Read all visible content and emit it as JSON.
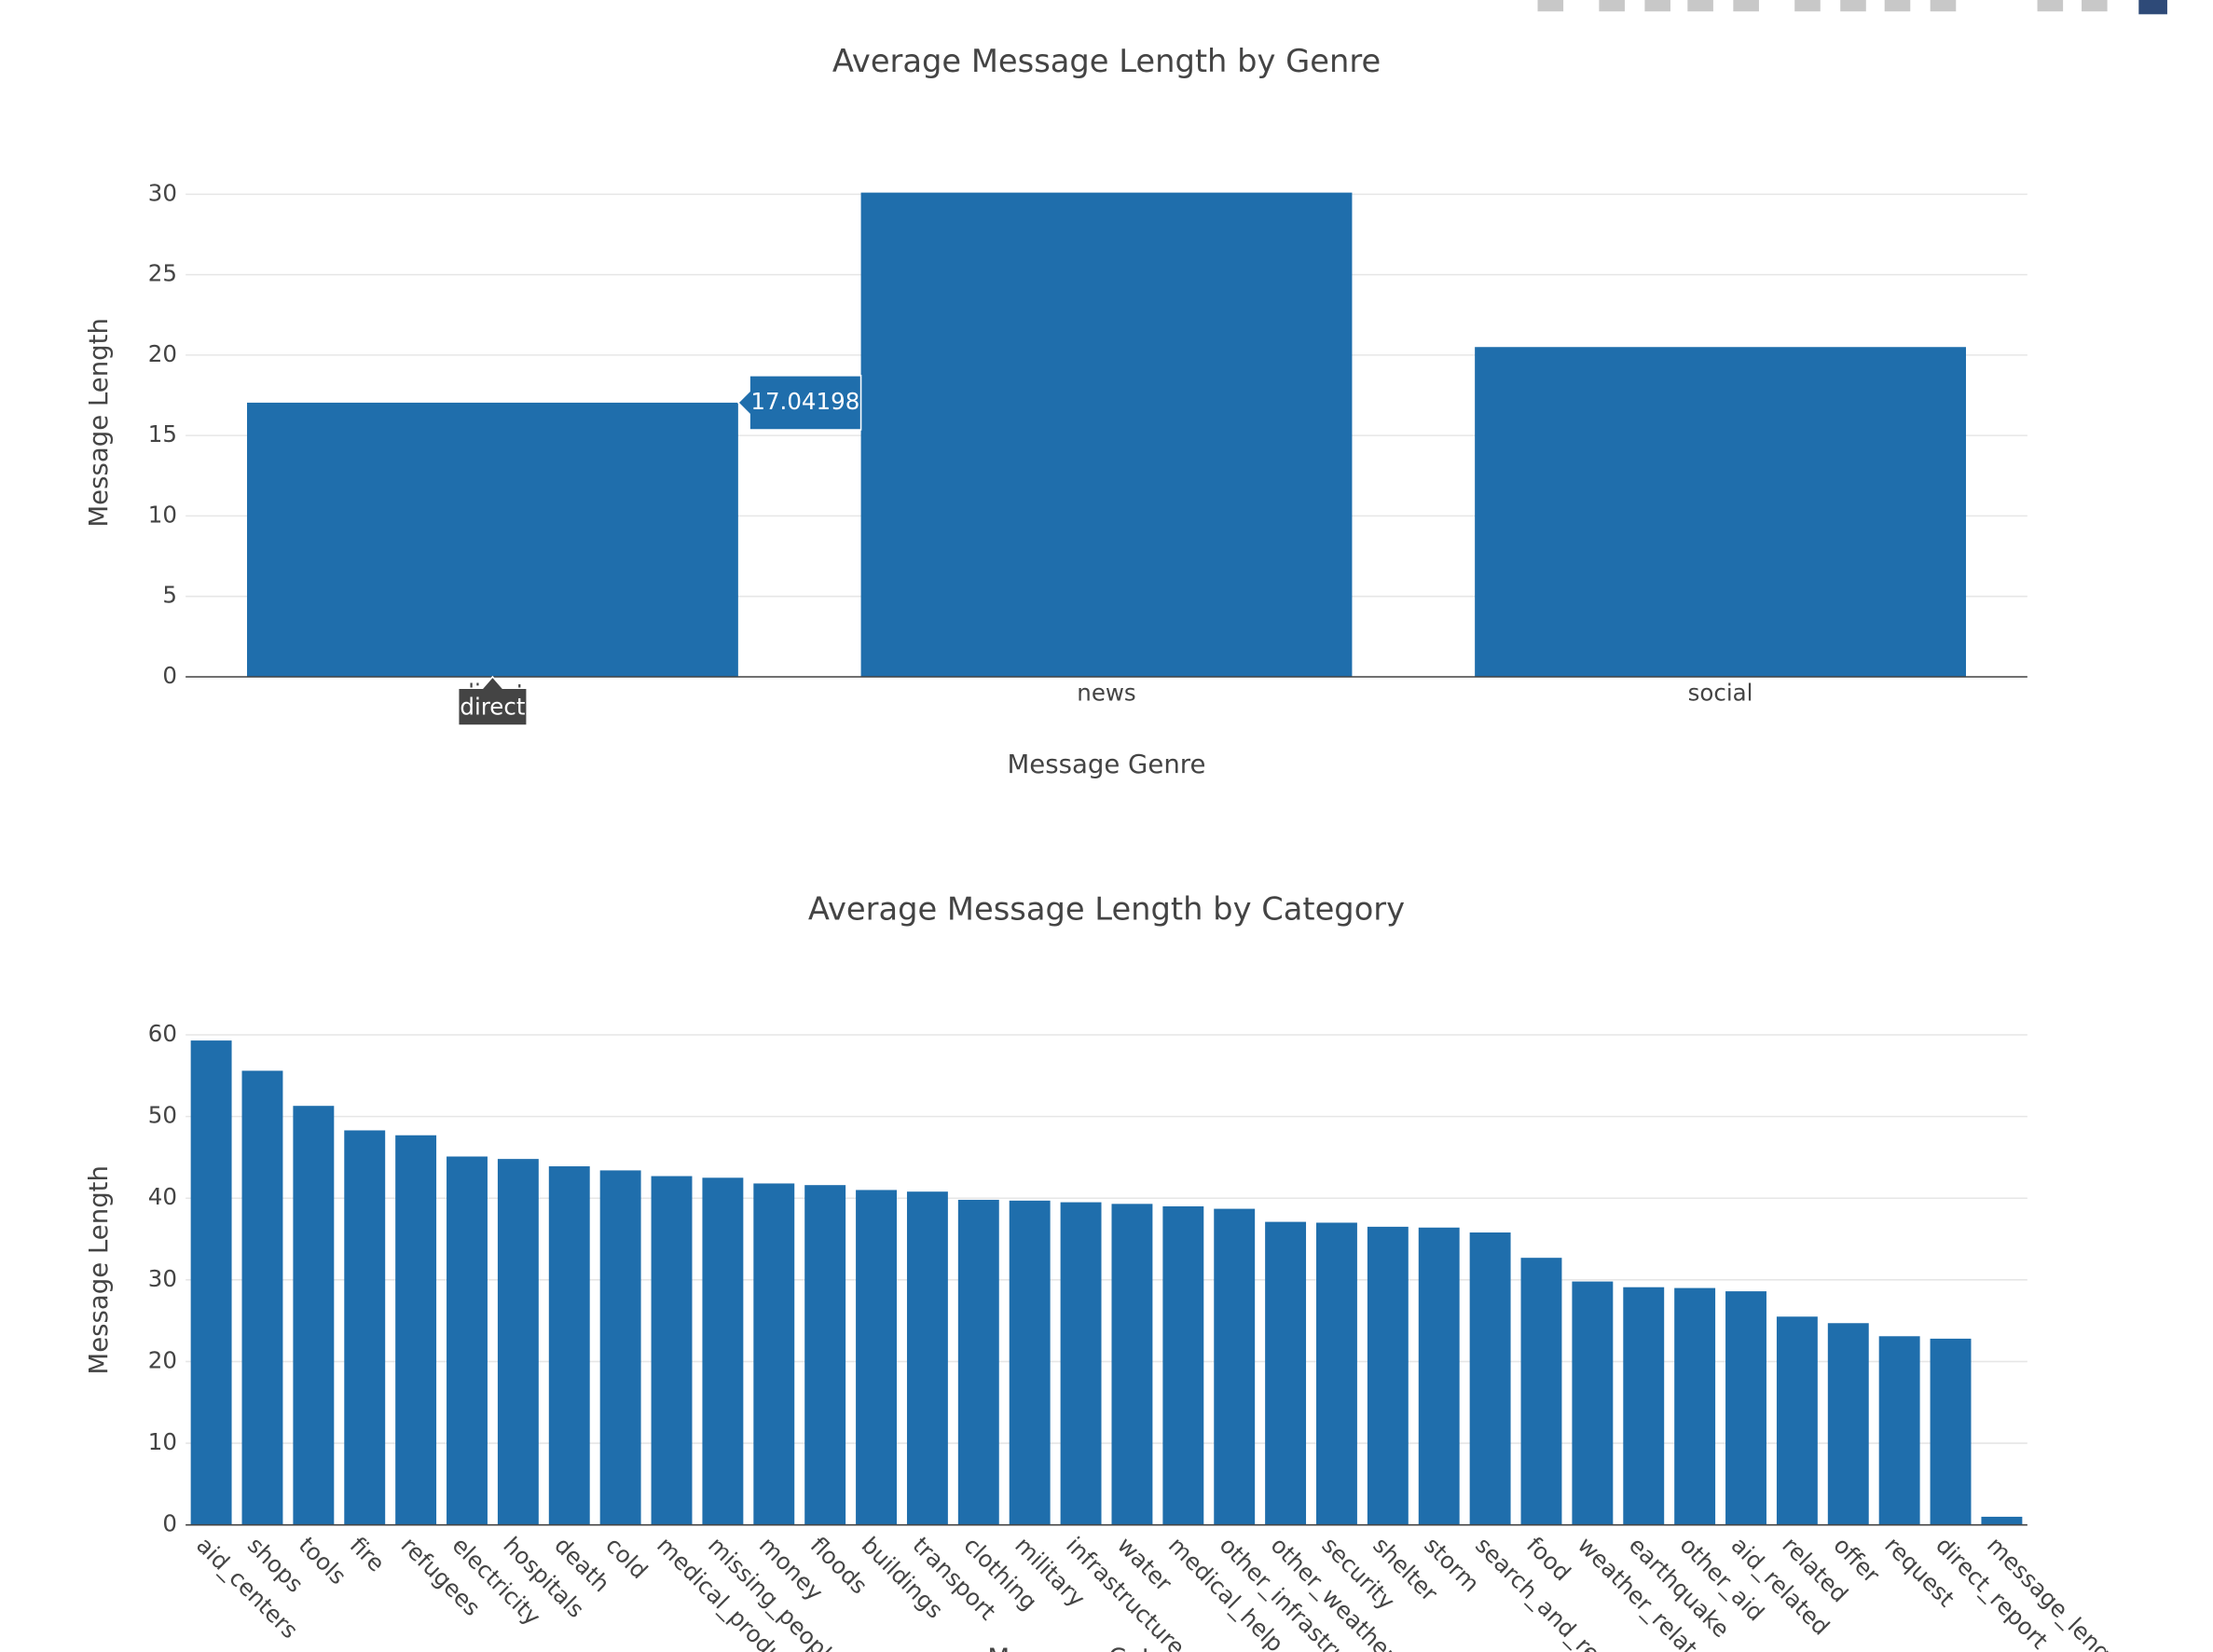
{
  "chart_data": [
    {
      "type": "bar",
      "title": "Average Message Length by Genre",
      "xlabel": "Message Genre",
      "ylabel": "Message Length",
      "categories": [
        "direct",
        "news",
        "social"
      ],
      "values": [
        17.04198,
        30.1,
        20.5
      ],
      "color": "#1f6eac",
      "ylim": [
        0,
        31.6
      ],
      "yticks": [
        0,
        5,
        10,
        15,
        20,
        25,
        30
      ],
      "grid": true,
      "hovered": 0
    },
    {
      "type": "bar",
      "title": "Average Message Length by Category",
      "xlabel": "Message Category",
      "ylabel": "Message Length",
      "categories": [
        "aid_centers",
        "shops",
        "tools",
        "fire",
        "refugees",
        "electricity",
        "hospitals",
        "death",
        "cold",
        "medical_products",
        "missing_people",
        "money",
        "floods",
        "buildings",
        "transport",
        "clothing",
        "military",
        "infrastructure_related",
        "water",
        "medical_help",
        "other_infrastructure",
        "other_weather",
        "security",
        "shelter",
        "storm",
        "search_and_rescue",
        "food",
        "weather_related",
        "earthquake",
        "other_aid",
        "aid_related",
        "related",
        "offer",
        "request",
        "direct_report",
        "message_length"
      ],
      "values": [
        59.3,
        55.6,
        51.3,
        48.3,
        47.7,
        45.1,
        44.8,
        43.9,
        43.4,
        42.7,
        42.5,
        41.8,
        41.6,
        41.0,
        40.8,
        39.8,
        39.7,
        39.5,
        39.3,
        39.0,
        38.7,
        37.1,
        37.0,
        36.5,
        36.4,
        35.8,
        32.7,
        29.8,
        29.1,
        29.0,
        28.6,
        25.5,
        24.7,
        23.1,
        22.8,
        1.0
      ],
      "color": "#1f6eac",
      "ylim": [
        0,
        62.4
      ],
      "yticks": [
        0,
        10,
        20,
        30,
        40,
        50,
        60
      ],
      "grid": true,
      "xtickangle": 45
    }
  ]
}
